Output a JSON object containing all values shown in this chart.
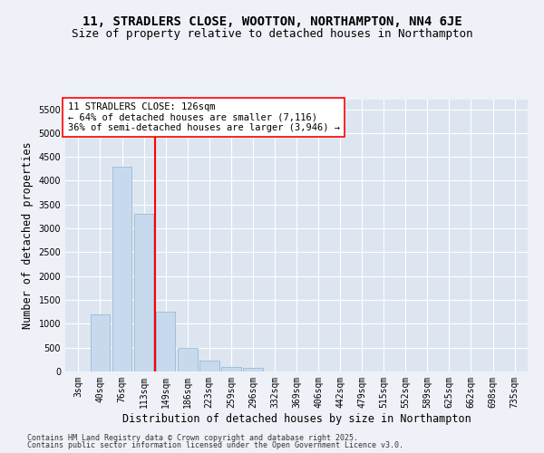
{
  "title_line1": "11, STRADLERS CLOSE, WOOTTON, NORTHAMPTON, NN4 6JE",
  "title_line2": "Size of property relative to detached houses in Northampton",
  "xlabel": "Distribution of detached houses by size in Northampton",
  "ylabel": "Number of detached properties",
  "categories": [
    "3sqm",
    "40sqm",
    "76sqm",
    "113sqm",
    "149sqm",
    "186sqm",
    "223sqm",
    "259sqm",
    "296sqm",
    "332sqm",
    "369sqm",
    "406sqm",
    "442sqm",
    "479sqm",
    "515sqm",
    "552sqm",
    "589sqm",
    "625sqm",
    "662sqm",
    "698sqm",
    "735sqm"
  ],
  "values": [
    0,
    1200,
    4300,
    3300,
    1250,
    500,
    230,
    100,
    70,
    0,
    0,
    0,
    0,
    0,
    0,
    0,
    0,
    0,
    0,
    0,
    0
  ],
  "bar_color": "#c9d9ed",
  "bar_edge_color": "#8ab4d4",
  "vline_x": 3.5,
  "vline_color": "red",
  "annotation_text": "11 STRADLERS CLOSE: 126sqm\n← 64% of detached houses are smaller (7,116)\n36% of semi-detached houses are larger (3,946) →",
  "annotation_box_color": "white",
  "annotation_box_edge_color": "red",
  "ylim": [
    0,
    5700
  ],
  "yticks": [
    0,
    500,
    1000,
    1500,
    2000,
    2500,
    3000,
    3500,
    4000,
    4500,
    5000,
    5500
  ],
  "footer_line1": "Contains HM Land Registry data © Crown copyright and database right 2025.",
  "footer_line2": "Contains public sector information licensed under the Open Government Licence v3.0.",
  "bg_color": "#eef2f8",
  "plot_bg_color": "#dde6f0",
  "grid_color": "#ffffff",
  "title_fontsize": 10,
  "subtitle_fontsize": 9,
  "axis_label_fontsize": 8.5,
  "tick_fontsize": 7,
  "ann_fontsize": 7.5,
  "footer_fontsize": 6
}
